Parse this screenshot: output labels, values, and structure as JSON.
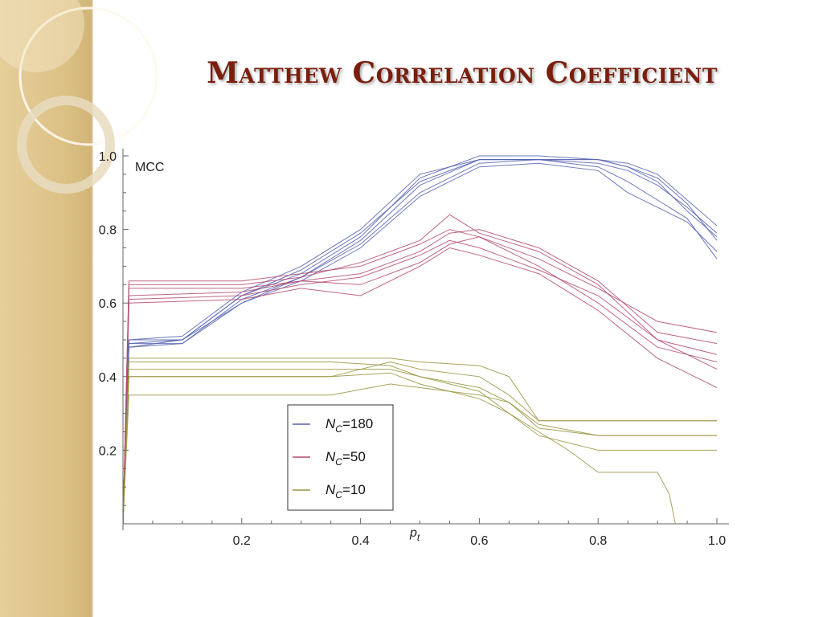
{
  "slide": {
    "title": "Matthew Correlation Coefficient",
    "title_color": "#7a1e0e",
    "sidebar_color": "#e2c891"
  },
  "chart_data": {
    "type": "line",
    "title": "",
    "xlabel": "p_t",
    "ylabel": "MCC",
    "xlim": [
      0,
      1.0
    ],
    "ylim": [
      0,
      1.0
    ],
    "xticks": [
      0.2,
      0.4,
      0.6,
      0.8,
      1.0
    ],
    "yticks": [
      0.2,
      0.4,
      0.6,
      0.8,
      1.0
    ],
    "grid": false,
    "legend_position": "bottom-left (inside)",
    "groups": [
      {
        "name": "N_C=180",
        "legend_main": "N",
        "legend_sub": "C",
        "legend_value": "=180",
        "color": "#5561b0",
        "series": [
          {
            "x": [
              0,
              0.01,
              0.1,
              0.2,
              0.3,
              0.4,
              0.5,
              0.6,
              0.7,
              0.8,
              0.85,
              0.9,
              0.95,
              1.0
            ],
            "y": [
              0,
              0.48,
              0.49,
              0.6,
              0.67,
              0.77,
              0.92,
              0.99,
              0.99,
              0.99,
              0.97,
              0.93,
              0.85,
              0.78
            ]
          },
          {
            "x": [
              0,
              0.01,
              0.1,
              0.2,
              0.3,
              0.4,
              0.5,
              0.6,
              0.7,
              0.8,
              0.85,
              0.9,
              0.95,
              1.0
            ],
            "y": [
              0,
              0.49,
              0.5,
              0.62,
              0.68,
              0.78,
              0.94,
              1.0,
              1.0,
              0.99,
              0.98,
              0.95,
              0.88,
              0.81
            ]
          },
          {
            "x": [
              0,
              0.01,
              0.1,
              0.2,
              0.3,
              0.4,
              0.5,
              0.6,
              0.7,
              0.8,
              0.85,
              0.9,
              0.95,
              1.0
            ],
            "y": [
              0,
              0.5,
              0.51,
              0.63,
              0.7,
              0.8,
              0.95,
              0.99,
              0.99,
              0.97,
              0.93,
              0.88,
              0.83,
              0.72
            ]
          },
          {
            "x": [
              0,
              0.01,
              0.1,
              0.2,
              0.3,
              0.4,
              0.5,
              0.6,
              0.7,
              0.8,
              0.85,
              0.9,
              0.95,
              1.0
            ],
            "y": [
              0,
              0.49,
              0.49,
              0.61,
              0.67,
              0.76,
              0.9,
              0.98,
              0.99,
              0.98,
              0.96,
              0.92,
              0.86,
              0.79
            ]
          },
          {
            "x": [
              0,
              0.01,
              0.1,
              0.2,
              0.3,
              0.4,
              0.5,
              0.6,
              0.7,
              0.8,
              0.85,
              0.9,
              0.95,
              1.0
            ],
            "y": [
              0,
              0.5,
              0.5,
              0.62,
              0.69,
              0.79,
              0.93,
              0.99,
              0.99,
              0.99,
              0.97,
              0.94,
              0.87,
              0.77
            ]
          },
          {
            "x": [
              0,
              0.01,
              0.1,
              0.2,
              0.3,
              0.4,
              0.5,
              0.6,
              0.7,
              0.8,
              0.85,
              0.9,
              0.95,
              1.0
            ],
            "y": [
              0,
              0.48,
              0.5,
              0.6,
              0.66,
              0.75,
              0.89,
              0.97,
              0.98,
              0.96,
              0.9,
              0.86,
              0.82,
              0.74
            ]
          }
        ]
      },
      {
        "name": "N_C=50",
        "legend_main": "N",
        "legend_sub": "C",
        "legend_value": "=50",
        "color": "#b44a72",
        "series": [
          {
            "x": [
              0,
              0.01,
              0.2,
              0.3,
              0.4,
              0.5,
              0.55,
              0.6,
              0.7,
              0.8,
              0.9,
              1.0
            ],
            "y": [
              0,
              0.66,
              0.66,
              0.68,
              0.7,
              0.76,
              0.8,
              0.78,
              0.72,
              0.64,
              0.55,
              0.52
            ]
          },
          {
            "x": [
              0,
              0.01,
              0.2,
              0.3,
              0.4,
              0.5,
              0.55,
              0.6,
              0.7,
              0.8,
              0.9,
              1.0
            ],
            "y": [
              0,
              0.64,
              0.64,
              0.66,
              0.68,
              0.74,
              0.79,
              0.8,
              0.75,
              0.66,
              0.52,
              0.49
            ]
          },
          {
            "x": [
              0,
              0.01,
              0.2,
              0.3,
              0.4,
              0.5,
              0.55,
              0.6,
              0.7,
              0.8,
              0.9,
              1.0
            ],
            "y": [
              0,
              0.62,
              0.63,
              0.66,
              0.65,
              0.71,
              0.76,
              0.78,
              0.7,
              0.6,
              0.48,
              0.44
            ]
          },
          {
            "x": [
              0,
              0.01,
              0.2,
              0.3,
              0.4,
              0.5,
              0.55,
              0.6,
              0.7,
              0.8,
              0.9,
              1.0
            ],
            "y": [
              0,
              0.6,
              0.61,
              0.64,
              0.62,
              0.7,
              0.75,
              0.73,
              0.68,
              0.58,
              0.45,
              0.37
            ]
          },
          {
            "x": [
              0,
              0.01,
              0.2,
              0.3,
              0.4,
              0.5,
              0.55,
              0.6,
              0.7,
              0.8,
              0.9,
              1.0
            ],
            "y": [
              0,
              0.65,
              0.65,
              0.67,
              0.71,
              0.77,
              0.84,
              0.79,
              0.74,
              0.65,
              0.5,
              0.46
            ]
          },
          {
            "x": [
              0,
              0.01,
              0.2,
              0.3,
              0.4,
              0.5,
              0.55,
              0.6,
              0.7,
              0.8,
              0.9,
              1.0
            ],
            "y": [
              0,
              0.61,
              0.62,
              0.65,
              0.67,
              0.73,
              0.77,
              0.75,
              0.69,
              0.62,
              0.5,
              0.42
            ]
          }
        ]
      },
      {
        "name": "N_C=10",
        "legend_main": "N",
        "legend_sub": "C",
        "legend_value": "=10",
        "color": "#9a9440",
        "series": [
          {
            "x": [
              0,
              0.01,
              0.35,
              0.45,
              0.5,
              0.6,
              0.65,
              0.7,
              1.0
            ],
            "y": [
              0,
              0.45,
              0.45,
              0.45,
              0.44,
              0.43,
              0.4,
              0.28,
              0.28
            ]
          },
          {
            "x": [
              0,
              0.01,
              0.35,
              0.45,
              0.5,
              0.6,
              0.65,
              0.7,
              0.8,
              1.0
            ],
            "y": [
              0,
              0.44,
              0.44,
              0.43,
              0.4,
              0.37,
              0.33,
              0.26,
              0.24,
              0.24
            ]
          },
          {
            "x": [
              0,
              0.01,
              0.35,
              0.45,
              0.5,
              0.6,
              0.65,
              0.7,
              0.8,
              1.0
            ],
            "y": [
              0,
              0.42,
              0.42,
              0.42,
              0.4,
              0.36,
              0.3,
              0.24,
              0.2,
              0.2
            ]
          },
          {
            "x": [
              0,
              0.01,
              0.35,
              0.45,
              0.5,
              0.6,
              0.65,
              0.7,
              0.75,
              0.8,
              0.9,
              0.92,
              0.93,
              1.0
            ],
            "y": [
              0,
              0.4,
              0.4,
              0.41,
              0.38,
              0.34,
              0.3,
              0.25,
              0.2,
              0.14,
              0.14,
              0.08,
              0.0,
              0.0
            ]
          },
          {
            "x": [
              0,
              0.01,
              0.35,
              0.45,
              0.5,
              0.6,
              0.65,
              0.7,
              0.8,
              1.0
            ],
            "y": [
              0,
              0.35,
              0.35,
              0.38,
              0.37,
              0.35,
              0.33,
              0.27,
              0.24,
              0.24
            ]
          },
          {
            "x": [
              0,
              0.01,
              0.35,
              0.45,
              0.5,
              0.6,
              0.65,
              0.7,
              0.8,
              1.0
            ],
            "y": [
              0,
              0.4,
              0.4,
              0.44,
              0.42,
              0.4,
              0.35,
              0.28,
              0.28,
              0.28
            ]
          }
        ]
      }
    ]
  }
}
